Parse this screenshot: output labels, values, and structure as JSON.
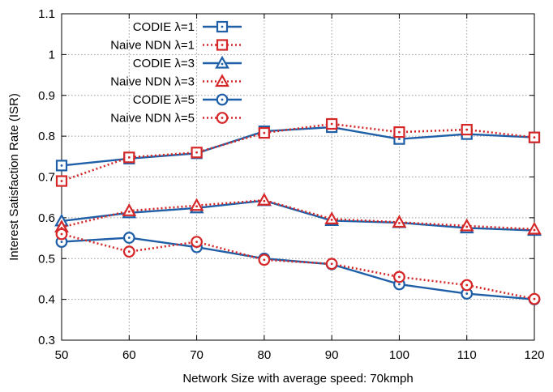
{
  "chart_data": {
    "type": "line",
    "title": "",
    "xlabel": "Network Size with average speed: 70kmph",
    "ylabel": "Interest Satisfaction Rate (ISR)",
    "x": [
      50,
      60,
      70,
      80,
      90,
      100,
      110,
      120
    ],
    "x_ticks": [
      "50",
      "60",
      "70",
      "80",
      "90",
      "100",
      "110",
      "120"
    ],
    "y_ticks": [
      "0.3",
      "0.4",
      "0.5",
      "0.6",
      "0.7",
      "0.8",
      "0.9",
      "1",
      "1.1"
    ],
    "xlim": [
      50,
      120
    ],
    "ylim": [
      0.3,
      1.1
    ],
    "grid": true,
    "legend_position": "top-left",
    "series": [
      {
        "name": "CODIE λ=1",
        "color": "#1f5fa8",
        "line": "solid",
        "marker": "square",
        "values": [
          0.728,
          0.745,
          0.758,
          0.812,
          0.822,
          0.793,
          0.805,
          0.797
        ]
      },
      {
        "name": "Naive NDN λ=1",
        "color": "#d62728",
        "line": "dotted",
        "marker": "square",
        "values": [
          0.69,
          0.748,
          0.76,
          0.808,
          0.83,
          0.81,
          0.816,
          0.797
        ]
      },
      {
        "name": "CODIE λ=3",
        "color": "#1f5fa8",
        "line": "solid",
        "marker": "triangle",
        "values": [
          0.592,
          0.612,
          0.624,
          0.642,
          0.593,
          0.588,
          0.575,
          0.569
        ]
      },
      {
        "name": "Naive NDN λ=3",
        "color": "#d62728",
        "line": "dotted",
        "marker": "triangle",
        "values": [
          0.577,
          0.617,
          0.63,
          0.643,
          0.597,
          0.589,
          0.58,
          0.572
        ]
      },
      {
        "name": "CODIE λ=5",
        "color": "#1f5fa8",
        "line": "solid",
        "marker": "circle",
        "values": [
          0.541,
          0.551,
          0.528,
          0.5,
          0.486,
          0.437,
          0.414,
          0.4
        ]
      },
      {
        "name": "Naive NDN λ=5",
        "color": "#d62728",
        "line": "dotted",
        "marker": "circle",
        "values": [
          0.56,
          0.517,
          0.541,
          0.497,
          0.487,
          0.455,
          0.435,
          0.401
        ]
      }
    ]
  }
}
